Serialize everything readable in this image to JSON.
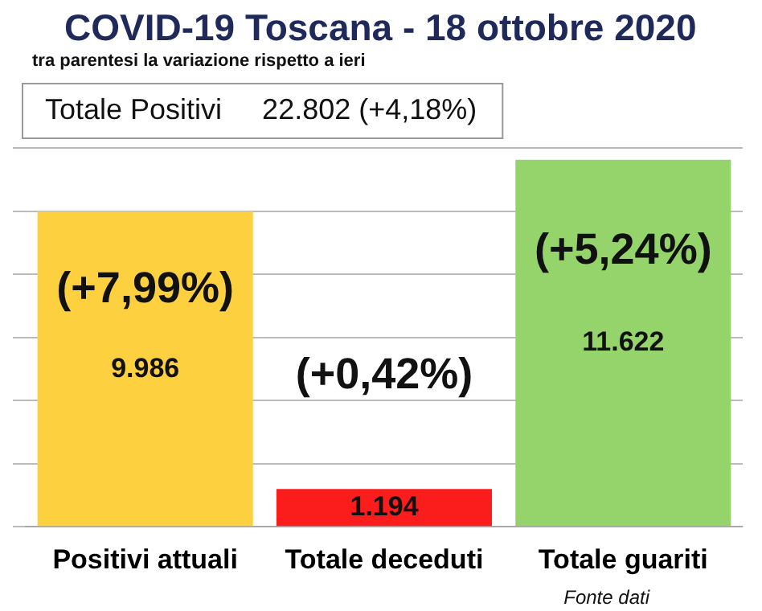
{
  "chart_data": {
    "type": "bar",
    "title": "COVID-19  Toscana - 18 ottobre 2020",
    "subtitle": "tra parentesi la variazione rispetto a ieri",
    "categories": [
      "Positivi attuali",
      "Totale deceduti",
      "Totale guariti"
    ],
    "values": [
      9986,
      1194,
      11622
    ],
    "colors": [
      "#fcd03f",
      "#fb1c1c",
      "#95d46b"
    ],
    "value_labels": [
      "9.986",
      "1.194",
      "11.622"
    ],
    "ylim": [
      0,
      12000
    ],
    "yticks": [
      {
        "value": 0,
        "label": null
      },
      {
        "value": 2000,
        "label": null
      },
      {
        "value": 4000,
        "label": null
      },
      {
        "value": 6000,
        "label": null
      },
      {
        "value": 8000,
        "label": null
      },
      {
        "value": 10000,
        "label": null
      },
      {
        "value": 12000,
        "label": null
      }
    ],
    "tick_labels": "x",
    "grid": "y",
    "legend": false,
    "annotations": [
      "Totale Positivi     22.802 (+4,18%)",
      "(+7,99%)",
      "(+0,42%)",
      "(+5,24%)",
      "Fonte dati"
    ]
  }
}
